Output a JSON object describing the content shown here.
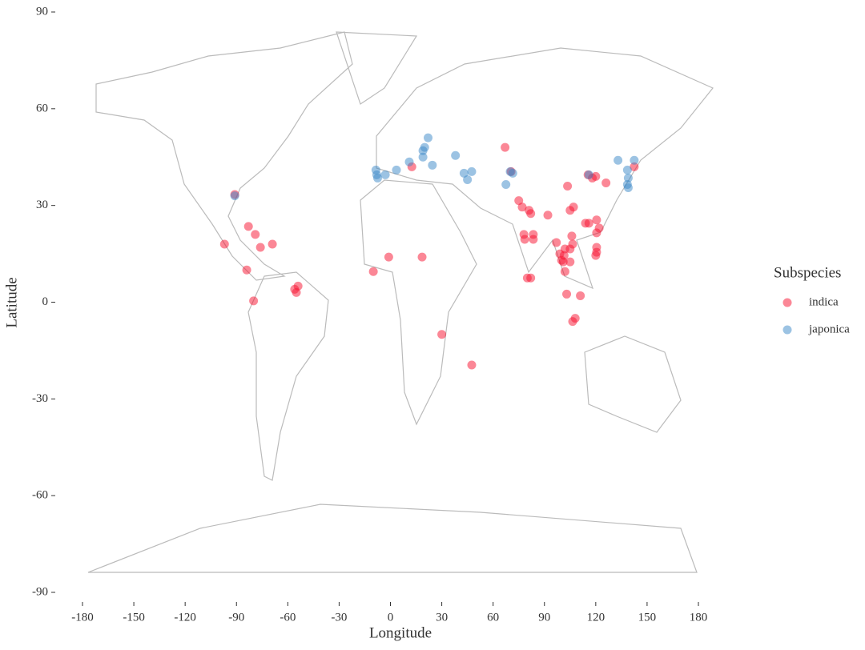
{
  "chart_data": {
    "type": "scatter",
    "x_label": "Longitude",
    "y_label": "Latitude",
    "legend_title": "Subspecies",
    "legend_position": "right",
    "xlim": [
      -180,
      180
    ],
    "ylim": [
      -90,
      90
    ],
    "xticks": [
      -180,
      -150,
      -120,
      -90,
      -60,
      -30,
      0,
      30,
      60,
      90,
      120,
      150,
      180
    ],
    "yticks": [
      -90,
      -60,
      -30,
      0,
      30,
      60,
      90
    ],
    "opacity": 0.5,
    "series": [
      {
        "name": "indica",
        "color": "#f8102e",
        "x": [
          -91,
          -97,
          -83,
          -79,
          -76,
          -69,
          -84,
          -80,
          -56,
          -54,
          -55,
          -10,
          -1,
          18.5,
          30,
          47.5,
          12.5,
          67,
          70.5,
          75,
          77,
          81,
          82,
          92,
          103.5,
          105,
          107,
          118,
          120,
          126,
          142.5,
          78.5,
          78,
          83.5,
          83.5,
          80,
          82,
          97,
          101.5,
          101,
          105,
          106,
          105,
          106.5,
          102,
          103,
          111,
          108,
          106.5,
          114,
          116,
          120.5,
          122,
          120.5,
          120.5,
          120.5,
          120,
          99,
          100,
          102,
          115.5
        ],
        "values": [
          33.4,
          18,
          23.5,
          21,
          17,
          18,
          10,
          0.4,
          4,
          5,
          3,
          9.5,
          14,
          14,
          -10,
          -19.5,
          42,
          48,
          40.5,
          31.5,
          29.5,
          28.5,
          27.5,
          27,
          36,
          28.5,
          29.5,
          38.5,
          39,
          37,
          42,
          19.5,
          21,
          21,
          19.5,
          7.5,
          7.5,
          18.5,
          14.5,
          12.5,
          12.5,
          20.5,
          16.5,
          18,
          9.5,
          2.5,
          2,
          -5,
          -6,
          24.5,
          24.5,
          25.5,
          23,
          21.5,
          15.5,
          17,
          14.5,
          15,
          13,
          16.5,
          39.5
        ]
      },
      {
        "name": "japonica",
        "color": "#3a87c8",
        "x": [
          -91,
          -8,
          -7.5,
          -8.5,
          -3,
          3.5,
          11,
          19,
          20,
          22,
          24.5,
          19,
          38,
          43,
          45,
          47.5,
          67.5,
          71.5,
          70,
          116,
          133,
          138.5,
          139,
          138.5,
          139,
          142.5
        ],
        "values": [
          33,
          39.5,
          38.5,
          41,
          39.5,
          41,
          43.5,
          47,
          48,
          51,
          42.5,
          45,
          45.5,
          40,
          38,
          40.5,
          36.5,
          40,
          40.5,
          39.5,
          44,
          41,
          38.5,
          36.5,
          35.5,
          44
        ]
      }
    ]
  }
}
